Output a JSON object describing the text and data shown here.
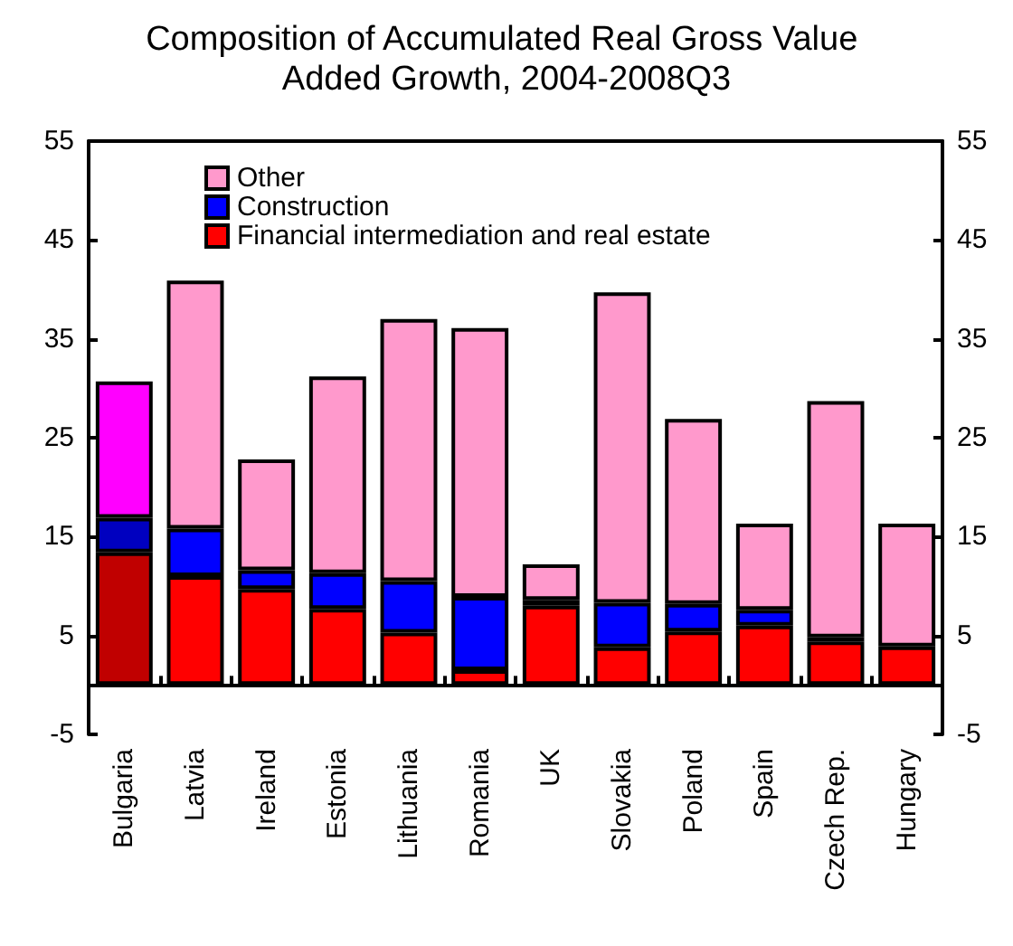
{
  "chart_data": {
    "type": "bar",
    "title": "Composition of Accumulated Real Gross Value Added Growth, 2004-2008Q3",
    "categories": [
      "Bulgaria",
      "Latvia",
      "Ireland",
      "Estonia",
      "Lithuania",
      "Romania",
      "UK",
      "Slovakia",
      "Poland",
      "Spain",
      "Czech Rep.",
      "Hungary"
    ],
    "series": [
      {
        "name": "Financial intermediation and real estate",
        "color": "#ff0000",
        "colors": [
          "#c00000",
          "#ff0000",
          "#ff0000",
          "#ff0000",
          "#ff0000",
          "#ff0000",
          "#ff0000",
          "#ff0000",
          "#ff0000",
          "#ff0000",
          "#ff0000",
          "#ff0000"
        ],
        "values": [
          13.4,
          11.0,
          9.7,
          7.7,
          5.3,
          1.5,
          8.0,
          3.8,
          5.4,
          6.0,
          4.4,
          3.9
        ]
      },
      {
        "name": "Construction",
        "color": "#0000ff",
        "colors": [
          "#0000c0",
          "#0000ff",
          "#0000ff",
          "#0000ff",
          "#0000ff",
          "#0000ff",
          "#0000ff",
          "#0000ff",
          "#0000ff",
          "#0000ff",
          "#0000ff",
          "#0000ff"
        ],
        "values": [
          3.5,
          4.8,
          1.9,
          3.6,
          5.2,
          7.4,
          0.6,
          4.5,
          2.8,
          1.6,
          0.4,
          null
        ]
      },
      {
        "name": "Other",
        "color": "#ff99cc",
        "colors": [
          "#ff00ff",
          "#ff99cc",
          "#ff99cc",
          "#ff99cc",
          "#ff99cc",
          "#ff99cc",
          "#ff99cc",
          "#ff99cc",
          "#ff99cc",
          "#ff99cc",
          "#ff99cc",
          "#ff99cc"
        ],
        "values": [
          13.8,
          25.1,
          11.2,
          19.9,
          26.5,
          27.2,
          3.6,
          31.4,
          18.7,
          8.7,
          23.9,
          12.4
        ]
      }
    ],
    "stacked": true,
    "ylim": [
      -5,
      55
    ],
    "yticks": [
      -5,
      5,
      15,
      25,
      35,
      45,
      55
    ],
    "y2lim": [
      -5,
      55
    ],
    "y2ticks": [
      -5,
      5,
      15,
      25,
      35,
      45,
      55
    ],
    "grid": false,
    "legend": "top left"
  }
}
